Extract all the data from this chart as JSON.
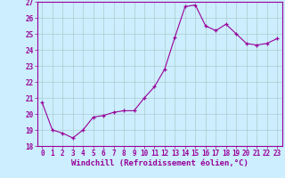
{
  "x": [
    0,
    1,
    2,
    3,
    4,
    5,
    6,
    7,
    8,
    9,
    10,
    11,
    12,
    13,
    14,
    15,
    16,
    17,
    18,
    19,
    20,
    21,
    22,
    23
  ],
  "y": [
    20.7,
    19.0,
    18.8,
    18.5,
    19.0,
    19.8,
    19.9,
    20.1,
    20.2,
    20.2,
    21.0,
    21.7,
    22.8,
    24.8,
    26.7,
    26.8,
    25.5,
    25.2,
    25.6,
    25.0,
    24.4,
    24.3,
    24.4,
    24.7
  ],
  "ylim": [
    18,
    27
  ],
  "xlim": [
    -0.5,
    23.5
  ],
  "yticks": [
    18,
    19,
    20,
    21,
    22,
    23,
    24,
    25,
    26,
    27
  ],
  "xticks": [
    0,
    1,
    2,
    3,
    4,
    5,
    6,
    7,
    8,
    9,
    10,
    11,
    12,
    13,
    14,
    15,
    16,
    17,
    18,
    19,
    20,
    21,
    22,
    23
  ],
  "xlabel": "Windchill (Refroidissement éolien,°C)",
  "line_color": "#990099",
  "marker": "+",
  "bg_color": "#cceeff",
  "grid_color": "#aacccc",
  "tick_label_fontsize": 5.5,
  "xlabel_fontsize": 6.5
}
